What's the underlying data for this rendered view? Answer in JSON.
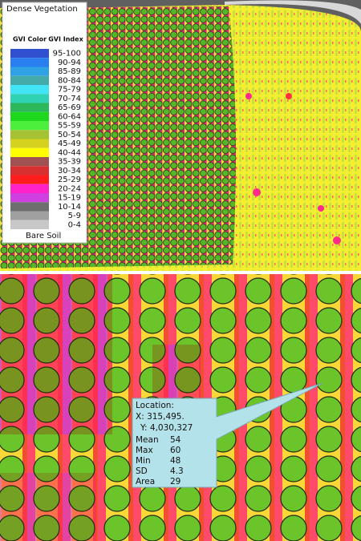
{
  "legend": {
    "top_label": "Dense Vegetation",
    "color_header": "GVI Color",
    "index_header": "GVI Index",
    "bottom_label": "Bare Soil",
    "entries": [
      {
        "label": "95-100",
        "color": "#3050d0"
      },
      {
        "label": "90-94",
        "color": "#2a7ff0"
      },
      {
        "label": "85-89",
        "color": "#2fa2e6"
      },
      {
        "label": "80-84",
        "color": "#44aaaa"
      },
      {
        "label": "75-79",
        "color": "#40e4f4"
      },
      {
        "label": "70-74",
        "color": "#30d2b4"
      },
      {
        "label": "65-69",
        "color": "#2cb85a"
      },
      {
        "label": "60-64",
        "color": "#1ed81e"
      },
      {
        "label": "55-59",
        "color": "#4cf03c"
      },
      {
        "label": "50-54",
        "color": "#a4c232"
      },
      {
        "label": "45-49",
        "color": "#d4d21e"
      },
      {
        "label": "40-44",
        "color": "#ffff00"
      },
      {
        "label": "35-39",
        "color": "#a05252"
      },
      {
        "label": "30-34",
        "color": "#d83030"
      },
      {
        "label": "25-29",
        "color": "#ff1c1c"
      },
      {
        "label": "20-24",
        "color": "#ff22c8"
      },
      {
        "label": "15-19",
        "color": "#d040e0"
      },
      {
        "label": "10-14",
        "color": "#6e6e6e"
      },
      {
        "label": "5-9",
        "color": "#a0a0a0"
      },
      {
        "label": "0-4",
        "color": "#c8c8c8"
      }
    ]
  },
  "callout": {
    "location_label": "Location:",
    "x_coord": "X: 315,495.",
    "y_coord": "Y: 4,030,327",
    "stats": [
      {
        "label": "Mean",
        "value": 54
      },
      {
        "label": "Max",
        "value": 60
      },
      {
        "label": "Min",
        "value": 48
      },
      {
        "label": "SD",
        "value": 4.3
      },
      {
        "label": "Area",
        "value": 29
      }
    ]
  }
}
